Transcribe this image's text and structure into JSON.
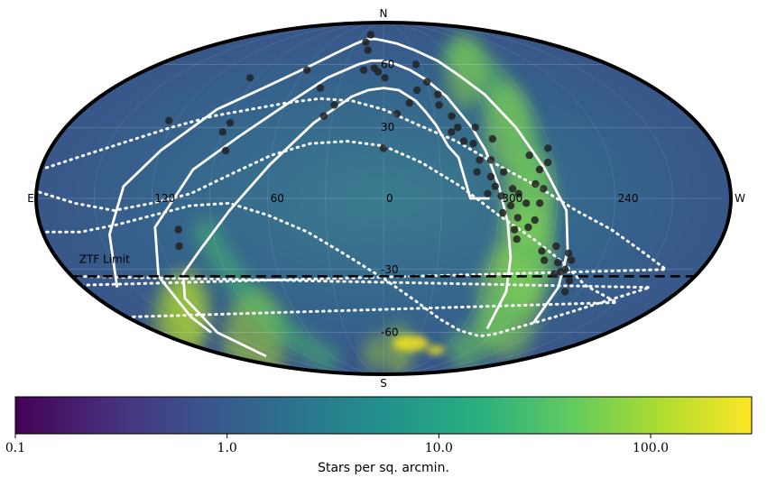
{
  "chart_data": {
    "type": "scatter",
    "projection": "mollweide",
    "projection_longitude_direction": "increasing-left",
    "background": "stellar density map (viridis colormap)",
    "colors": {
      "map_base": "#3a5f8a",
      "points": "#222222",
      "curves": "#ffffff",
      "ztf_limit_line": "#000000",
      "frame": "#000000"
    },
    "cardinal_labels": {
      "north": "N",
      "south": "S",
      "east": "E",
      "west": "W"
    },
    "lon_tick_labels": [
      "120",
      "60",
      "0",
      "300",
      "240"
    ],
    "lon_ticks": [
      120,
      60,
      0,
      300,
      240
    ],
    "lat_tick_labels": [
      "60",
      "30",
      "-30",
      "-60"
    ],
    "lat_ticks": [
      60,
      30,
      -30,
      -60
    ],
    "ztf_limit": {
      "label": "ZTF Limit",
      "dec": -33
    },
    "colorbar": {
      "label": "Stars per sq. arcmin.",
      "scale": "log",
      "range": [
        0.1,
        300
      ],
      "tick_labels": [
        "0.1",
        "1.0",
        "10.0",
        "100.0"
      ],
      "ticks": [
        0.1,
        1.0,
        10.0,
        100.0
      ],
      "colormap": [
        "#440154",
        "#472d7b",
        "#3b528b",
        "#2c728e",
        "#21918c",
        "#28ae80",
        "#5ec962",
        "#addc30",
        "#fde725"
      ]
    },
    "points": [
      [
        124,
        33
      ],
      [
        110,
        -20
      ],
      [
        108,
        -13
      ],
      [
        95,
        53
      ],
      [
        88,
        32
      ],
      [
        90,
        28
      ],
      [
        85,
        20
      ],
      [
        58,
        57
      ],
      [
        42,
        48
      ],
      [
        35,
        35
      ],
      [
        30,
        40
      ],
      [
        18,
        78
      ],
      [
        20,
        73
      ],
      [
        15,
        68
      ],
      [
        7,
        58
      ],
      [
        15,
        57
      ],
      [
        359,
        53
      ],
      [
        4,
        56
      ],
      [
        352,
        36
      ],
      [
        360,
        21
      ],
      [
        344,
        41
      ],
      [
        338,
        47
      ],
      [
        334,
        60
      ],
      [
        330,
        51
      ],
      [
        325,
        45
      ],
      [
        326,
        40
      ],
      [
        320,
        35
      ],
      [
        318,
        30
      ],
      [
        322,
        28
      ],
      [
        316,
        24
      ],
      [
        311,
        23
      ],
      [
        308,
        30
      ],
      [
        300,
        25
      ],
      [
        303,
        16
      ],
      [
        309,
        16
      ],
      [
        311,
        11
      ],
      [
        304,
        9
      ],
      [
        302,
        5
      ],
      [
        306,
        2
      ],
      [
        297,
        11
      ],
      [
        293,
        4
      ],
      [
        290,
        -8
      ],
      [
        289,
        -17
      ],
      [
        291,
        -13
      ],
      [
        294,
        -3
      ],
      [
        298,
        -6
      ],
      [
        299,
        1
      ],
      [
        290,
        2
      ],
      [
        286,
        -2
      ],
      [
        284,
        -12
      ],
      [
        281,
        -9
      ],
      [
        279,
        -2
      ],
      [
        277,
        4
      ],
      [
        281,
        6
      ],
      [
        278,
        12
      ],
      [
        282,
        18
      ],
      [
        271,
        21
      ],
      [
        273,
        15
      ],
      [
        274,
        -22
      ],
      [
        271,
        -26
      ],
      [
        267,
        -20
      ],
      [
        263,
        -27
      ],
      [
        259,
        -23
      ],
      [
        262,
        -32
      ],
      [
        259,
        -31
      ],
      [
        257,
        -30
      ],
      [
        256,
        -26
      ],
      [
        251,
        -35
      ],
      [
        249,
        -40
      ]
    ],
    "curves": [
      {
        "style": "solid",
        "points": [
          [
            -55,
            0
          ],
          [
            -45,
            0
          ],
          [
            -40,
            17
          ],
          [
            -35,
            22
          ],
          [
            -30,
            31
          ],
          [
            -25,
            37
          ],
          [
            -20,
            42
          ],
          [
            -10,
            47
          ],
          [
            0,
            48
          ],
          [
            10,
            47
          ],
          [
            20,
            44
          ],
          [
            40,
            32
          ],
          [
            60,
            14
          ],
          [
            80,
            -5
          ],
          [
            100,
            -22
          ],
          [
            115,
            -32
          ],
          [
            125,
            -43
          ],
          [
            133,
            -60
          ],
          [
            138,
            -74
          ]
        ]
      },
      {
        "style": "solid",
        "points": [
          [
            -80,
            -58
          ],
          [
            -75,
            -40
          ],
          [
            -70,
            -25
          ],
          [
            -65,
            -10
          ],
          [
            -60,
            5
          ],
          [
            -55,
            20
          ],
          [
            -50,
            30
          ],
          [
            -40,
            44
          ],
          [
            -30,
            52
          ],
          [
            -20,
            57
          ],
          [
            -10,
            60
          ],
          [
            0,
            62
          ],
          [
            10,
            62
          ],
          [
            20,
            60
          ],
          [
            40,
            53
          ],
          [
            60,
            40
          ],
          [
            80,
            26
          ],
          [
            100,
            12
          ],
          [
            120,
            -12
          ],
          [
            130,
            -33
          ],
          [
            135,
            -52
          ],
          [
            138,
            -60
          ]
        ]
      },
      {
        "style": "solid",
        "points": [
          [
            -110,
            -55
          ],
          [
            -105,
            -38
          ],
          [
            -100,
            -22
          ],
          [
            -95,
            -5
          ],
          [
            -85,
            12
          ],
          [
            -75,
            30
          ],
          [
            -65,
            45
          ],
          [
            -55,
            54
          ],
          [
            -45,
            62
          ],
          [
            -30,
            68
          ],
          [
            -15,
            72
          ],
          [
            0,
            74
          ],
          [
            10,
            75
          ],
          [
            20,
            75
          ],
          [
            30,
            72
          ],
          [
            40,
            68
          ],
          [
            60,
            58
          ],
          [
            80,
            48
          ],
          [
            100,
            38
          ],
          [
            120,
            20
          ],
          [
            135,
            5
          ],
          [
            145,
            -15
          ],
          [
            160,
            -38
          ]
        ]
      },
      {
        "style": "dotted",
        "points": [
          [
            -180,
            -37
          ],
          [
            -160,
            -30
          ],
          [
            -140,
            -22
          ],
          [
            -120,
            -13
          ],
          [
            -100,
            -5
          ],
          [
            -80,
            5
          ],
          [
            -60,
            14
          ],
          [
            -40,
            24
          ],
          [
            -20,
            31
          ],
          [
            0,
            38
          ],
          [
            20,
            42
          ],
          [
            40,
            43
          ],
          [
            60,
            41
          ],
          [
            80,
            38
          ],
          [
            100,
            35
          ],
          [
            120,
            30
          ],
          [
            140,
            24
          ],
          [
            160,
            18
          ],
          [
            180,
            12
          ]
        ]
      },
      {
        "style": "dotted",
        "points": [
          [
            -180,
            -52
          ],
          [
            -150,
            -45
          ],
          [
            -120,
            -37
          ],
          [
            -100,
            -27
          ],
          [
            -80,
            -17
          ],
          [
            -60,
            -7
          ],
          [
            -40,
            5
          ],
          [
            -20,
            15
          ],
          [
            0,
            22
          ],
          [
            20,
            24
          ],
          [
            40,
            23
          ],
          [
            60,
            18
          ],
          [
            80,
            10
          ],
          [
            100,
            2
          ],
          [
            120,
            -2
          ],
          [
            140,
            -5
          ],
          [
            160,
            -2
          ],
          [
            180,
            3
          ]
        ]
      },
      {
        "style": "dotted",
        "points": [
          [
            -180,
            -33
          ],
          [
            -160,
            -38
          ],
          [
            -140,
            -45
          ],
          [
            -120,
            -52
          ],
          [
            -100,
            -58
          ],
          [
            -90,
            -61
          ],
          [
            -80,
            -62
          ],
          [
            -60,
            -59
          ],
          [
            -40,
            -53
          ],
          [
            -20,
            -44
          ],
          [
            0,
            -34
          ],
          [
            20,
            -24
          ],
          [
            40,
            -14
          ],
          [
            60,
            -7
          ],
          [
            80,
            -2
          ],
          [
            100,
            -3
          ],
          [
            120,
            -7
          ],
          [
            140,
            -11
          ],
          [
            160,
            -14
          ],
          [
            180,
            -14
          ]
        ]
      }
    ]
  }
}
